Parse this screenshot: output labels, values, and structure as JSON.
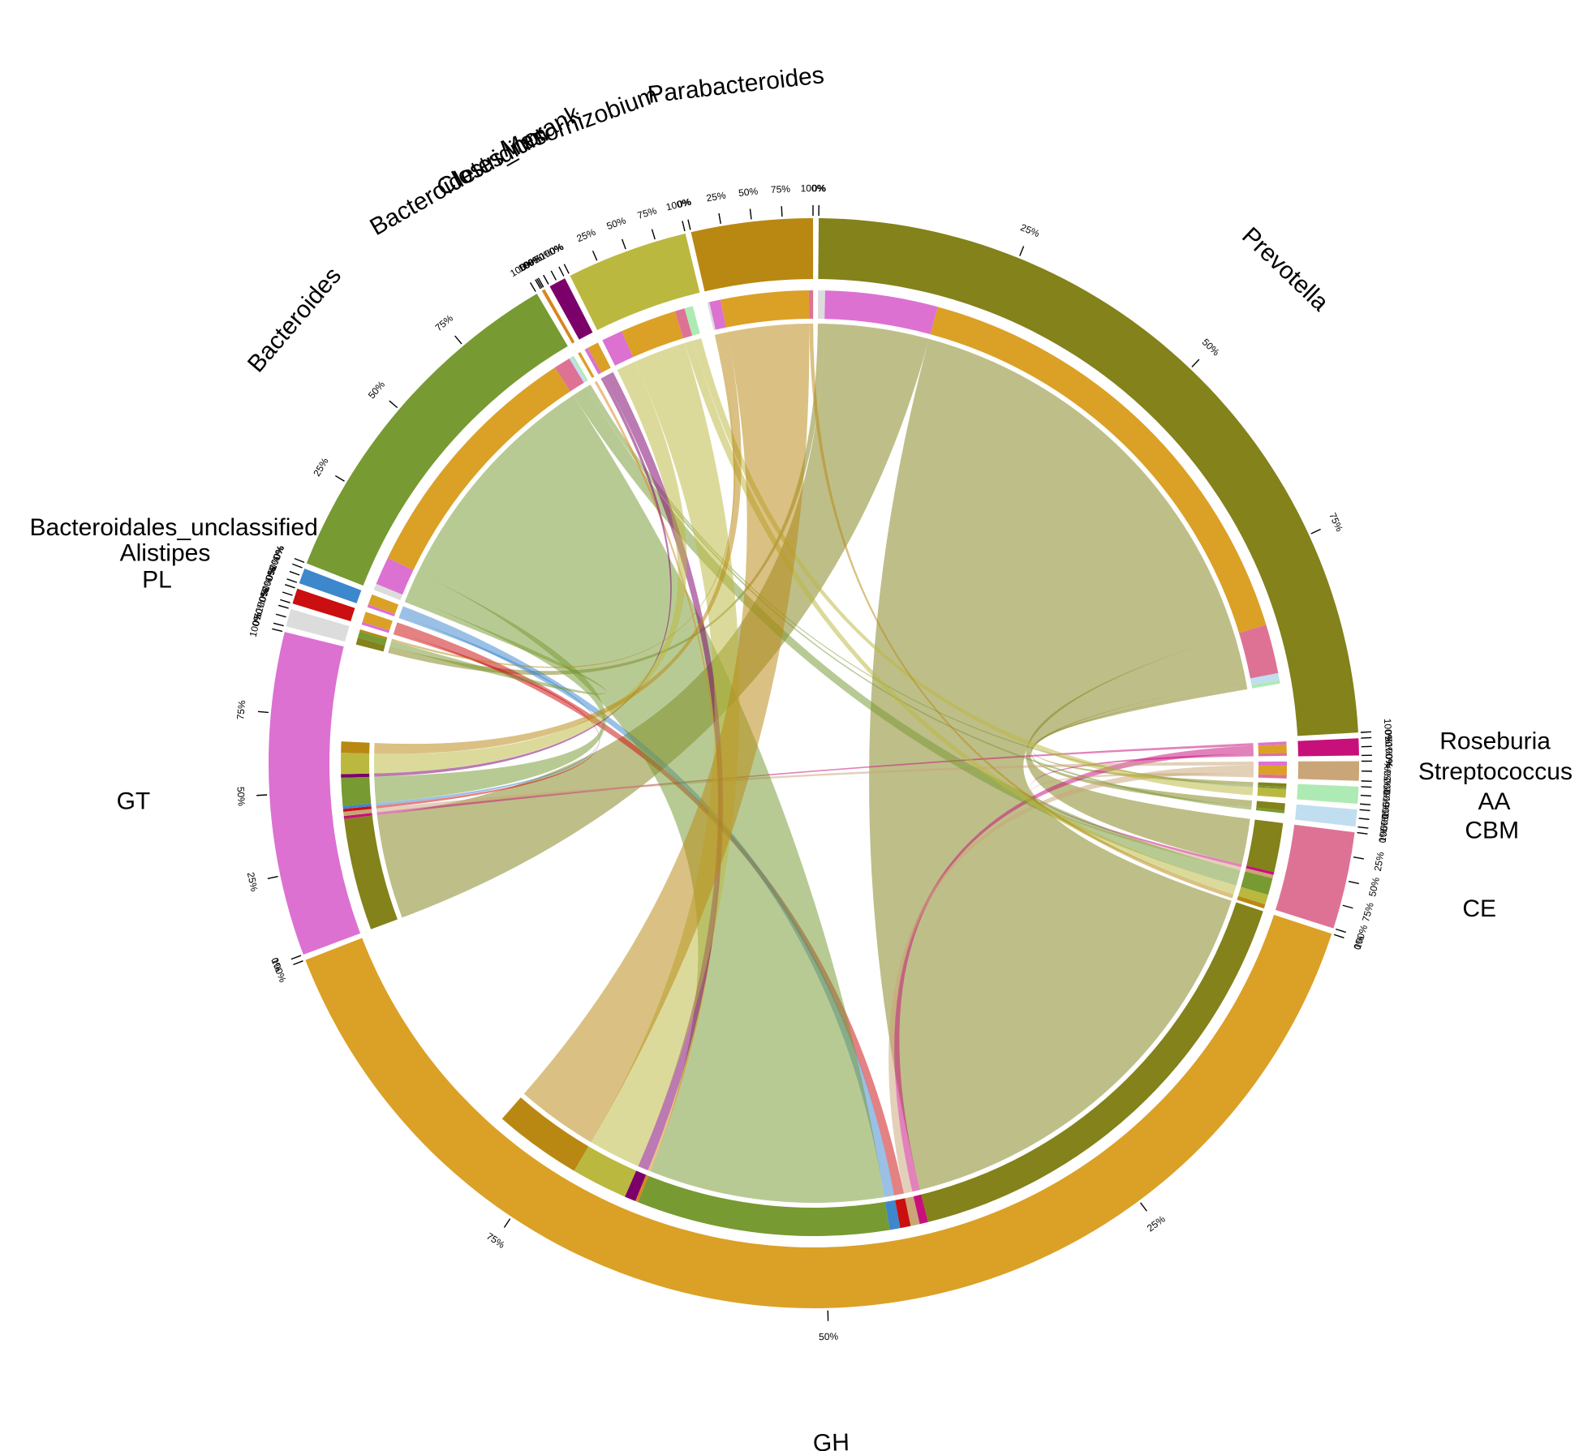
{
  "chart_data": {
    "type": "chord",
    "title": "",
    "tick_labels": [
      "0%",
      "25%",
      "50%",
      "75%",
      "100%"
    ],
    "sectors": [
      {
        "name": "Prevotella",
        "group": "genus",
        "value": 100,
        "color": "#83821B"
      },
      {
        "name": "Roseburia",
        "group": "genus",
        "value": 2.1,
        "color": "#C8107A"
      },
      {
        "name": "Streptococcus",
        "group": "genus",
        "value": 2.4,
        "color": "#C9A577"
      },
      {
        "name": "AA",
        "group": "cazy",
        "value": 2.1,
        "color": "#AEEAB3"
      },
      {
        "name": "CBM",
        "group": "cazy",
        "value": 2.1,
        "color": "#C1DDF0"
      },
      {
        "name": "CE",
        "group": "cazy",
        "value": 12,
        "color": "#DE7295"
      },
      {
        "name": "GH",
        "group": "cazy",
        "value": 163,
        "color": "#DBA026"
      },
      {
        "name": "GT",
        "group": "cazy",
        "value": 40,
        "color": "#DC71D2"
      },
      {
        "name": "PL",
        "group": "cazy",
        "value": 2.2,
        "color": "#DCDCDC"
      },
      {
        "name": "Alistipes",
        "group": "genus",
        "value": 1.9,
        "color": "#CB0E10"
      },
      {
        "name": "Bacteroidales_unclassified",
        "group": "genus",
        "value": 1.9,
        "color": "#3D87CD"
      },
      {
        "name": "Bacteroides",
        "group": "genus",
        "value": 44,
        "color": "#779A32"
      },
      {
        "name": "Bacteroidetes_norank",
        "group": "genus",
        "value": 0.4,
        "color": "#D6861F"
      },
      {
        "name": "Clostridium",
        "group": "genus",
        "value": 2.1,
        "color": "#7C006A"
      },
      {
        "name": "Mesorhizobium",
        "group": "genus",
        "value": 15,
        "color": "#BBB83F"
      },
      {
        "name": "Parabacteroides",
        "group": "genus",
        "value": 15,
        "color": "#B88812"
      }
    ],
    "links": [
      {
        "source": "Prevotella",
        "target": "PL",
        "value": 1.0
      },
      {
        "source": "Prevotella",
        "target": "GT",
        "value": 16
      },
      {
        "source": "Prevotella",
        "target": "GH",
        "value": 67
      },
      {
        "source": "Prevotella",
        "target": "CE",
        "value": 7
      },
      {
        "source": "Prevotella",
        "target": "CBM",
        "value": 1.0
      },
      {
        "source": "Prevotella",
        "target": "AA",
        "value": 0.5
      },
      {
        "source": "Roseburia",
        "target": "GT",
        "value": 0.4
      },
      {
        "source": "Roseburia",
        "target": "GH",
        "value": 1.2
      },
      {
        "source": "Roseburia",
        "target": "CE",
        "value": 0.4
      },
      {
        "source": "Streptococcus",
        "target": "GT",
        "value": 0.6
      },
      {
        "source": "Streptococcus",
        "target": "GH",
        "value": 1.3
      },
      {
        "source": "Streptococcus",
        "target": "CE",
        "value": 0.5
      },
      {
        "source": "Alistipes",
        "target": "GT",
        "value": 0.4
      },
      {
        "source": "Alistipes",
        "target": "GH",
        "value": 1.5
      },
      {
        "source": "Bacteroidales_unclassified",
        "target": "GT",
        "value": 0.4
      },
      {
        "source": "Bacteroidales_unclassified",
        "target": "GH",
        "value": 1.5
      },
      {
        "source": "Bacteroides",
        "target": "PL",
        "value": 0.9
      },
      {
        "source": "Bacteroides",
        "target": "GT",
        "value": 4
      },
      {
        "source": "Bacteroides",
        "target": "GH",
        "value": 36
      },
      {
        "source": "Bacteroides",
        "target": "CE",
        "value": 2.4
      },
      {
        "source": "Bacteroides",
        "target": "CBM",
        "value": 0.4
      },
      {
        "source": "Bacteroides",
        "target": "AA",
        "value": 0.3
      },
      {
        "source": "Bacteroidetes_norank",
        "target": "GH",
        "value": 0.4
      },
      {
        "source": "Clostridium",
        "target": "GT",
        "value": 0.5
      },
      {
        "source": "Clostridium",
        "target": "GH",
        "value": 1.6
      },
      {
        "source": "Mesorhizobium",
        "target": "GT",
        "value": 3
      },
      {
        "source": "Mesorhizobium",
        "target": "GH",
        "value": 8
      },
      {
        "source": "Mesorhizobium",
        "target": "CE",
        "value": 1.4
      },
      {
        "source": "Mesorhizobium",
        "target": "AA",
        "value": 1.2
      },
      {
        "source": "Parabacteroides",
        "target": "PL",
        "value": 0.3
      },
      {
        "source": "Parabacteroides",
        "target": "GT",
        "value": 1.6
      },
      {
        "source": "Parabacteroides",
        "target": "GH",
        "value": 12.5
      },
      {
        "source": "Parabacteroides",
        "target": "CE",
        "value": 0.6
      }
    ]
  }
}
